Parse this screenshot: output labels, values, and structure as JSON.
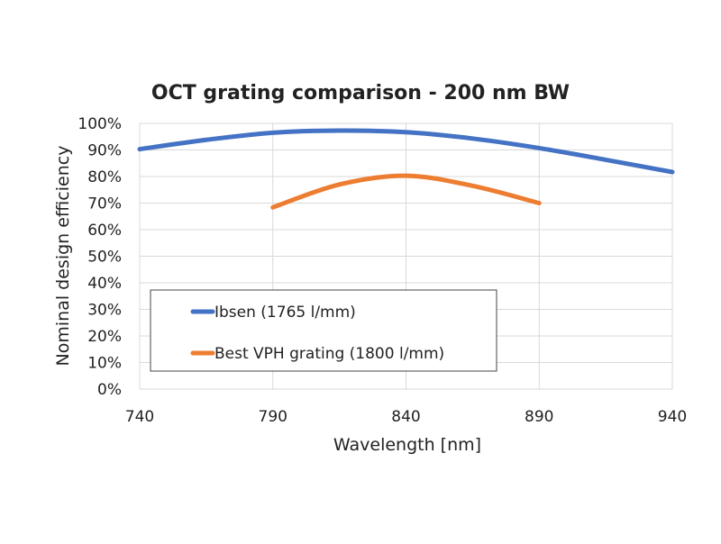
{
  "chart_data": {
    "type": "line",
    "title": "OCT grating comparison - 200 nm BW",
    "xlabel": "Wavelength [nm]",
    "ylabel": "Nominal design efficiency",
    "xlim": [
      740,
      940
    ],
    "ylim": [
      0,
      100
    ],
    "xticks": [
      "740",
      "790",
      "840",
      "890",
      "940"
    ],
    "yticks": [
      "0%",
      "10%",
      "20%",
      "30%",
      "40%",
      "50%",
      "60%",
      "70%",
      "80%",
      "90%",
      "100%"
    ],
    "grid": true,
    "legend_placement": "lower-left inside",
    "series": [
      {
        "name": "Ibsen (1765 l/mm)",
        "color": "#4472C4",
        "x": [
          740,
          765,
          790,
          815,
          840,
          865,
          890,
          915,
          940
        ],
        "y": [
          90.3,
          93.8,
          96.5,
          97.3,
          96.7,
          94.3,
          90.7,
          86.3,
          81.7
        ]
      },
      {
        "name": "Best VPH grating (1800 l/mm)",
        "color": "#ED7D31",
        "x": [
          790,
          815,
          840,
          865,
          890
        ],
        "y": [
          68.4,
          77.0,
          80.3,
          76.5,
          70.0
        ]
      }
    ]
  }
}
